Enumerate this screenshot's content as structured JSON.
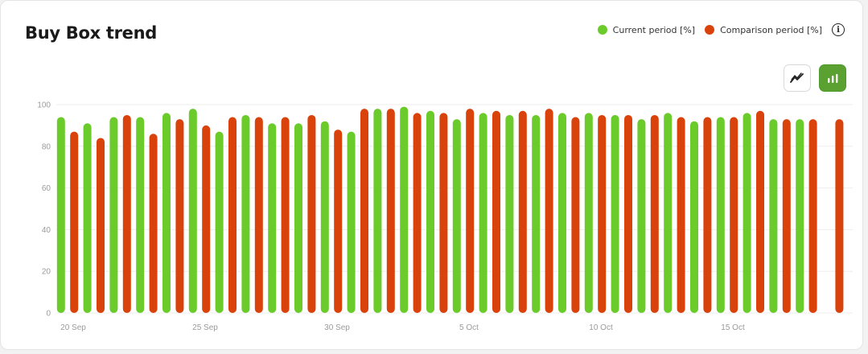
{
  "header": {
    "title": "Buy Box trend"
  },
  "legend": {
    "current_label": "Current period [%]",
    "comparison_label": "Comparison period [%]"
  },
  "toolbar": {
    "line_view_icon": "line-chart-icon",
    "bar_view_icon": "bar-chart-icon",
    "active_view": "bar",
    "info_icon": "info-icon"
  },
  "colors": {
    "current": "#6acb2b",
    "comparison": "#d9430b",
    "active_button": "#5aa132"
  },
  "chart_data": {
    "type": "bar",
    "ylim": [
      0,
      100
    ],
    "yticks": [
      0,
      20,
      40,
      60,
      80,
      100
    ],
    "grid": true,
    "legend_position": "top-right",
    "x_tick_labels": [
      {
        "index": 0,
        "label": "20 Sep"
      },
      {
        "index": 5,
        "label": "25 Sep"
      },
      {
        "index": 10,
        "label": "30 Sep"
      },
      {
        "index": 15,
        "label": "5 Oct"
      },
      {
        "index": 20,
        "label": "10 Oct"
      },
      {
        "index": 25,
        "label": "15 Oct"
      }
    ],
    "categories_count": 30,
    "series": [
      {
        "name": "Current period [%]",
        "color": "#6acb2b",
        "values": [
          94,
          91,
          94,
          94,
          96,
          98,
          87,
          95,
          91,
          91,
          92,
          87,
          98,
          99,
          97,
          93,
          96,
          95,
          95,
          96,
          96,
          95,
          93,
          96,
          92,
          94,
          96,
          93,
          93,
          null
        ]
      },
      {
        "name": "Comparison period [%]",
        "color": "#d9430b",
        "values": [
          87,
          84,
          95,
          86,
          93,
          90,
          94,
          94,
          94,
          95,
          88,
          98,
          98,
          96,
          96,
          98,
          97,
          97,
          98,
          94,
          95,
          95,
          95,
          94,
          94,
          94,
          97,
          93,
          93,
          93
        ]
      }
    ]
  }
}
